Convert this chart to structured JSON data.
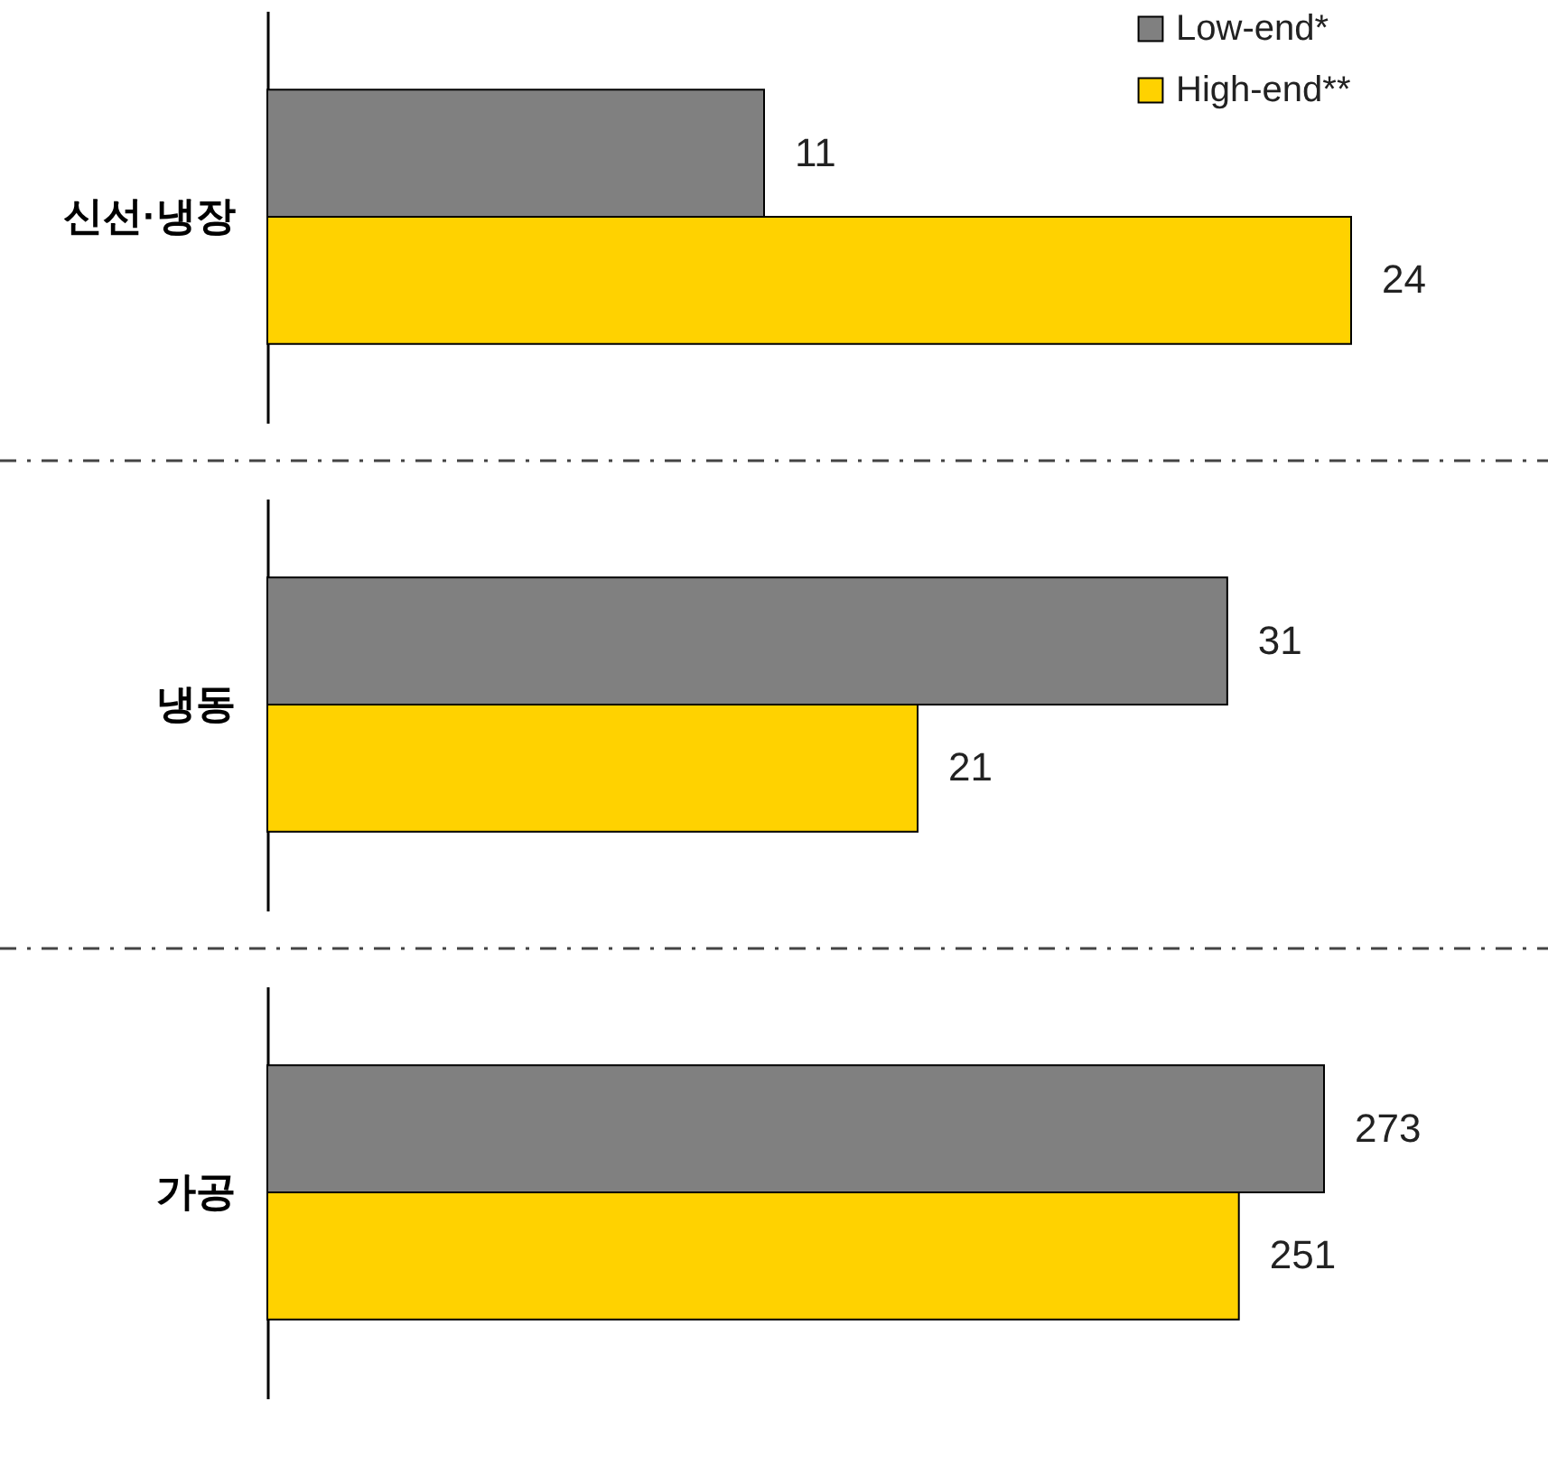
{
  "chart_data": [
    {
      "type": "bar",
      "orientation": "horizontal",
      "categories": [
        "신선·냉장"
      ],
      "data_labels": true,
      "legend": "top right",
      "tick_labels": "y",
      "series": [
        {
          "name": "Low-end*",
          "color": "#808080",
          "values": [
            11
          ]
        },
        {
          "name": "High-end**",
          "color": "#ffd200",
          "values": [
            24
          ]
        }
      ]
    },
    {
      "type": "bar",
      "orientation": "horizontal",
      "categories": [
        "냉동"
      ],
      "data_labels": true,
      "tick_labels": "y",
      "series": [
        {
          "color": "#808080",
          "values": [
            31
          ]
        },
        {
          "color": "#ffd200",
          "values": [
            21
          ]
        }
      ]
    },
    {
      "type": "bar",
      "orientation": "horizontal",
      "categories": [
        "가공"
      ],
      "data_labels": true,
      "tick_labels": "y",
      "series": [
        {
          "color": "#808080",
          "values": [
            273
          ]
        },
        {
          "color": "#ffd200",
          "values": [
            251
          ]
        }
      ]
    }
  ]
}
